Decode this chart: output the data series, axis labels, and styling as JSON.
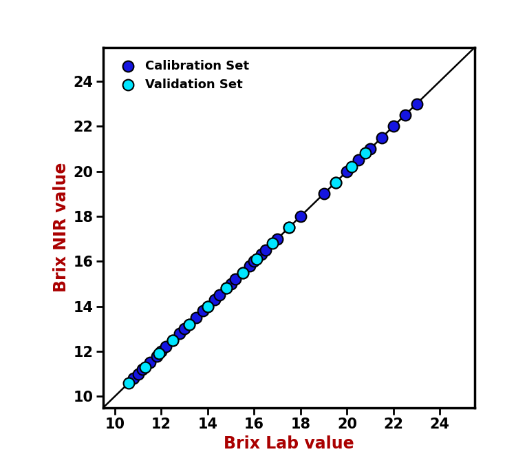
{
  "cal_x": [
    10.8,
    11.0,
    11.2,
    11.5,
    11.8,
    12.0,
    12.2,
    12.5,
    12.8,
    13.0,
    13.2,
    13.5,
    13.8,
    14.0,
    14.3,
    14.5,
    14.8,
    15.0,
    15.2,
    15.5,
    15.8,
    16.0,
    16.3,
    16.5,
    17.0,
    17.5,
    18.0,
    19.0,
    19.5,
    20.0,
    20.5,
    21.0,
    21.5,
    22.0,
    22.5,
    23.0
  ],
  "cal_y": [
    10.8,
    11.0,
    11.2,
    11.5,
    11.8,
    12.0,
    12.2,
    12.5,
    12.8,
    13.0,
    13.2,
    13.5,
    13.8,
    14.0,
    14.3,
    14.5,
    14.8,
    15.0,
    15.2,
    15.5,
    15.8,
    16.0,
    16.3,
    16.5,
    17.0,
    17.5,
    18.0,
    19.0,
    19.5,
    20.0,
    20.5,
    21.0,
    21.5,
    22.0,
    22.5,
    23.0
  ],
  "val_x": [
    10.6,
    11.3,
    11.9,
    12.5,
    13.2,
    14.0,
    14.8,
    15.5,
    16.1,
    16.8,
    17.5,
    19.5,
    20.2,
    20.8
  ],
  "val_y": [
    10.6,
    11.3,
    11.9,
    12.5,
    13.2,
    14.0,
    14.8,
    15.5,
    16.1,
    16.8,
    17.5,
    19.5,
    20.2,
    20.8
  ],
  "line_x": [
    9.3,
    25.5
  ],
  "line_y": [
    9.3,
    25.5
  ],
  "cal_color": "#1515e0",
  "val_color": "#00e5ff",
  "line_color": "#000000",
  "xlabel": "Brix Lab value",
  "ylabel": "Brix NIR value",
  "xlabel_color": "#aa0000",
  "ylabel_color": "#aa0000",
  "xlim": [
    9.5,
    25.5
  ],
  "ylim": [
    9.5,
    25.5
  ],
  "xticks": [
    10,
    12,
    14,
    16,
    18,
    20,
    22,
    24
  ],
  "yticks": [
    10,
    12,
    14,
    16,
    18,
    20,
    22,
    24
  ],
  "legend_cal": "Calibration Set",
  "legend_val": "Validation Set",
  "marker_size": 130,
  "marker_edge_color": "#000000",
  "marker_edge_width": 1.5,
  "background_color": "#ffffff",
  "axis_linewidth": 2.5,
  "tick_fontsize": 15,
  "label_fontsize": 17,
  "legend_fontsize": 13
}
